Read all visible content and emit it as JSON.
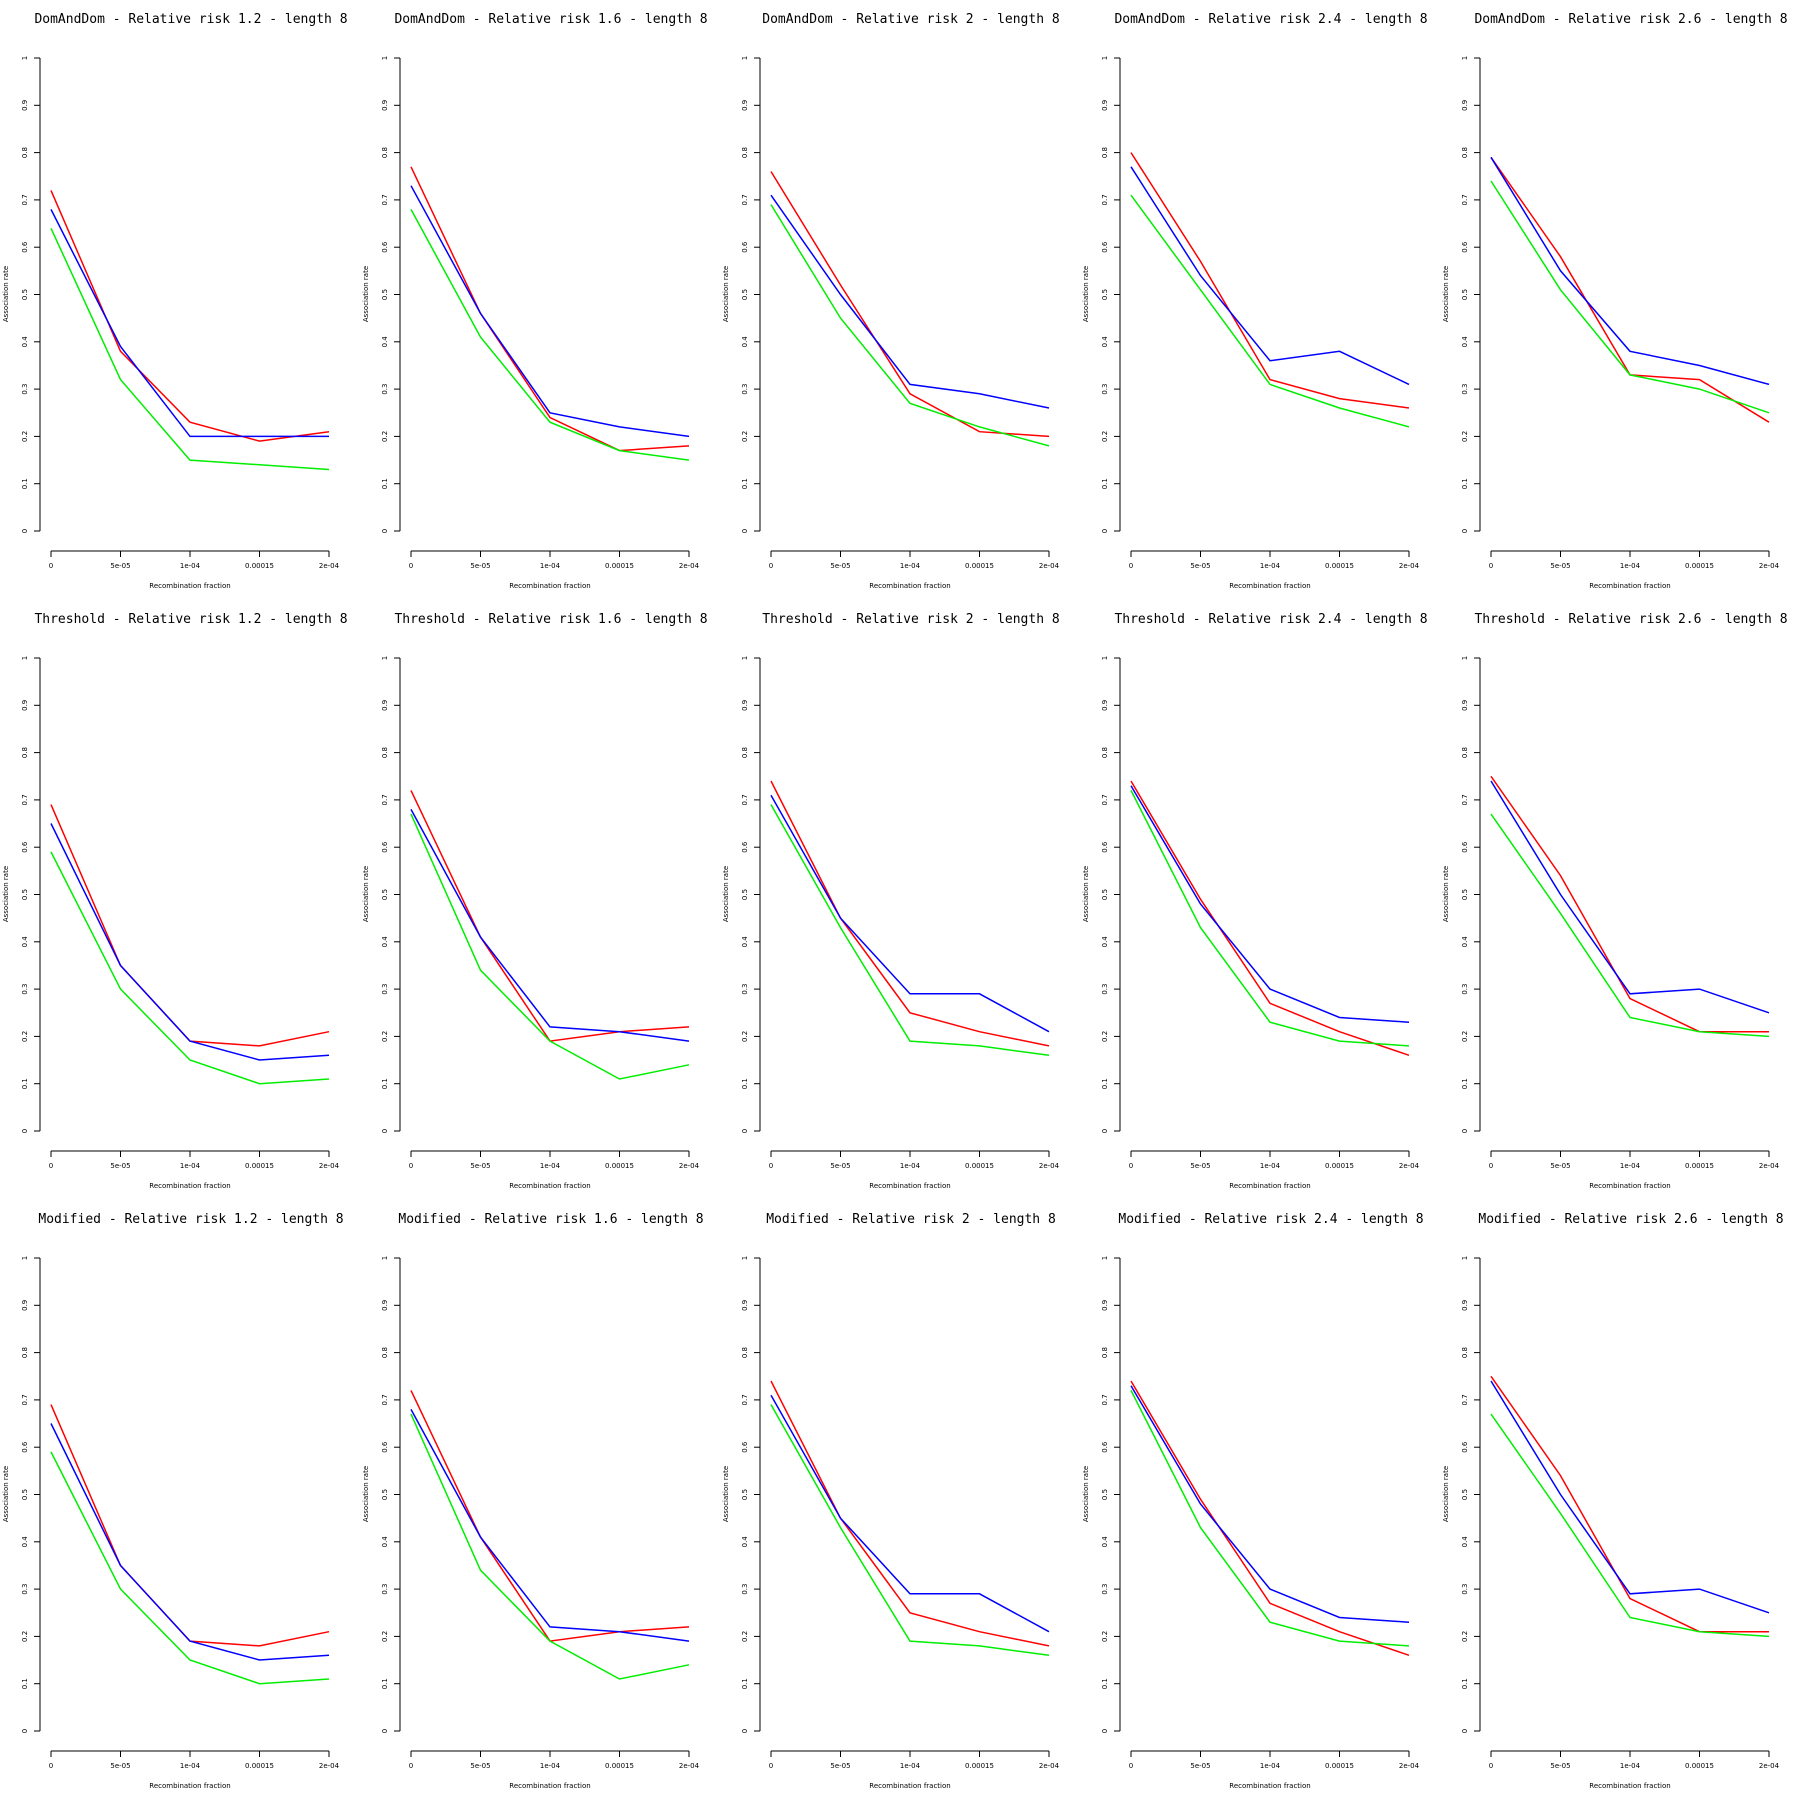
{
  "axes": {
    "xlabel": "Recombination fraction",
    "ylabel": "Association rate",
    "xtick_labels": [
      "0",
      "5e-05",
      "1e-04",
      "0.00015",
      "2e-04"
    ],
    "ytick_labels": [
      "0",
      "0.1",
      "0.2",
      "0.3",
      "0.4",
      "0.5",
      "0.6",
      "0.7",
      "0.8",
      "0.9",
      "1"
    ],
    "ylim": [
      0,
      1
    ]
  },
  "series_colors": [
    "#ff0000",
    "#0000ff",
    "#00ee00"
  ],
  "chart_data": [
    {
      "type": "line",
      "title": "DomAndDom  - Relative risk 1.2 - length 8",
      "x": [
        0,
        5e-05,
        0.0001,
        0.00015,
        0.0002
      ],
      "series": [
        {
          "color": "red",
          "values": [
            0.72,
            0.38,
            0.23,
            0.19,
            0.21
          ]
        },
        {
          "color": "blue",
          "values": [
            0.68,
            0.39,
            0.2,
            0.2,
            0.2
          ]
        },
        {
          "color": "green",
          "values": [
            0.64,
            0.32,
            0.15,
            0.14,
            0.13
          ]
        }
      ]
    },
    {
      "type": "line",
      "title": "DomAndDom  - Relative risk 1.6 - length 8",
      "x": [
        0,
        5e-05,
        0.0001,
        0.00015,
        0.0002
      ],
      "series": [
        {
          "color": "red",
          "values": [
            0.77,
            0.46,
            0.24,
            0.17,
            0.18
          ]
        },
        {
          "color": "blue",
          "values": [
            0.73,
            0.46,
            0.25,
            0.22,
            0.2
          ]
        },
        {
          "color": "green",
          "values": [
            0.68,
            0.41,
            0.23,
            0.17,
            0.15
          ]
        }
      ]
    },
    {
      "type": "line",
      "title": "DomAndDom  - Relative risk 2 - length 8",
      "x": [
        0,
        5e-05,
        0.0001,
        0.00015,
        0.0002
      ],
      "series": [
        {
          "color": "red",
          "values": [
            0.76,
            0.52,
            0.29,
            0.21,
            0.2
          ]
        },
        {
          "color": "blue",
          "values": [
            0.71,
            0.5,
            0.31,
            0.29,
            0.26
          ]
        },
        {
          "color": "green",
          "values": [
            0.69,
            0.45,
            0.27,
            0.22,
            0.18
          ]
        }
      ]
    },
    {
      "type": "line",
      "title": "DomAndDom  - Relative risk 2.4 - length 8",
      "x": [
        0,
        5e-05,
        0.0001,
        0.00015,
        0.0002
      ],
      "series": [
        {
          "color": "red",
          "values": [
            0.8,
            0.57,
            0.32,
            0.28,
            0.26
          ]
        },
        {
          "color": "blue",
          "values": [
            0.77,
            0.54,
            0.36,
            0.38,
            0.31
          ]
        },
        {
          "color": "green",
          "values": [
            0.71,
            0.51,
            0.31,
            0.26,
            0.22
          ]
        }
      ]
    },
    {
      "type": "line",
      "title": "DomAndDom  - Relative risk 2.6 - length 8",
      "x": [
        0,
        5e-05,
        0.0001,
        0.00015,
        0.0002
      ],
      "series": [
        {
          "color": "red",
          "values": [
            0.79,
            0.58,
            0.33,
            0.32,
            0.23
          ]
        },
        {
          "color": "blue",
          "values": [
            0.79,
            0.55,
            0.38,
            0.35,
            0.31
          ]
        },
        {
          "color": "green",
          "values": [
            0.74,
            0.51,
            0.33,
            0.3,
            0.25
          ]
        }
      ]
    },
    {
      "type": "line",
      "title": "Threshold  - Relative risk 1.2 - length 8",
      "x": [
        0,
        5e-05,
        0.0001,
        0.00015,
        0.0002
      ],
      "series": [
        {
          "color": "red",
          "values": [
            0.69,
            0.35,
            0.19,
            0.18,
            0.21
          ]
        },
        {
          "color": "blue",
          "values": [
            0.65,
            0.35,
            0.19,
            0.15,
            0.16
          ]
        },
        {
          "color": "green",
          "values": [
            0.59,
            0.3,
            0.15,
            0.1,
            0.11
          ]
        }
      ]
    },
    {
      "type": "line",
      "title": "Threshold  - Relative risk 1.6 - length 8",
      "x": [
        0,
        5e-05,
        0.0001,
        0.00015,
        0.0002
      ],
      "series": [
        {
          "color": "red",
          "values": [
            0.72,
            0.41,
            0.19,
            0.21,
            0.22
          ]
        },
        {
          "color": "blue",
          "values": [
            0.68,
            0.41,
            0.22,
            0.21,
            0.19
          ]
        },
        {
          "color": "green",
          "values": [
            0.67,
            0.34,
            0.19,
            0.11,
            0.14
          ]
        }
      ]
    },
    {
      "type": "line",
      "title": "Threshold  - Relative risk 2 - length 8",
      "x": [
        0,
        5e-05,
        0.0001,
        0.00015,
        0.0002
      ],
      "series": [
        {
          "color": "red",
          "values": [
            0.74,
            0.45,
            0.25,
            0.21,
            0.18
          ]
        },
        {
          "color": "blue",
          "values": [
            0.71,
            0.45,
            0.29,
            0.29,
            0.21
          ]
        },
        {
          "color": "green",
          "values": [
            0.69,
            0.43,
            0.19,
            0.18,
            0.16
          ]
        }
      ]
    },
    {
      "type": "line",
      "title": "Threshold  - Relative risk 2.4 - length 8",
      "x": [
        0,
        5e-05,
        0.0001,
        0.00015,
        0.0002
      ],
      "series": [
        {
          "color": "red",
          "values": [
            0.74,
            0.49,
            0.27,
            0.21,
            0.16
          ]
        },
        {
          "color": "blue",
          "values": [
            0.73,
            0.48,
            0.3,
            0.24,
            0.23
          ]
        },
        {
          "color": "green",
          "values": [
            0.72,
            0.43,
            0.23,
            0.19,
            0.18
          ]
        }
      ]
    },
    {
      "type": "line",
      "title": "Threshold  - Relative risk 2.6 - length 8",
      "x": [
        0,
        5e-05,
        0.0001,
        0.00015,
        0.0002
      ],
      "series": [
        {
          "color": "red",
          "values": [
            0.75,
            0.54,
            0.28,
            0.21,
            0.21
          ]
        },
        {
          "color": "blue",
          "values": [
            0.74,
            0.5,
            0.29,
            0.3,
            0.25
          ]
        },
        {
          "color": "green",
          "values": [
            0.67,
            0.46,
            0.24,
            0.21,
            0.2
          ]
        }
      ]
    },
    {
      "type": "line",
      "title": "Modified  - Relative risk 1.2 - length 8",
      "x": [
        0,
        5e-05,
        0.0001,
        0.00015,
        0.0002
      ],
      "series": [
        {
          "color": "red",
          "values": [
            0.69,
            0.35,
            0.19,
            0.18,
            0.21
          ]
        },
        {
          "color": "blue",
          "values": [
            0.65,
            0.35,
            0.19,
            0.15,
            0.16
          ]
        },
        {
          "color": "green",
          "values": [
            0.59,
            0.3,
            0.15,
            0.1,
            0.11
          ]
        }
      ]
    },
    {
      "type": "line",
      "title": "Modified  - Relative risk 1.6 - length 8",
      "x": [
        0,
        5e-05,
        0.0001,
        0.00015,
        0.0002
      ],
      "series": [
        {
          "color": "red",
          "values": [
            0.72,
            0.41,
            0.19,
            0.21,
            0.22
          ]
        },
        {
          "color": "blue",
          "values": [
            0.68,
            0.41,
            0.22,
            0.21,
            0.19
          ]
        },
        {
          "color": "green",
          "values": [
            0.67,
            0.34,
            0.19,
            0.11,
            0.14
          ]
        }
      ]
    },
    {
      "type": "line",
      "title": "Modified  - Relative risk 2 - length 8",
      "x": [
        0,
        5e-05,
        0.0001,
        0.00015,
        0.0002
      ],
      "series": [
        {
          "color": "red",
          "values": [
            0.74,
            0.45,
            0.25,
            0.21,
            0.18
          ]
        },
        {
          "color": "blue",
          "values": [
            0.71,
            0.45,
            0.29,
            0.29,
            0.21
          ]
        },
        {
          "color": "green",
          "values": [
            0.69,
            0.43,
            0.19,
            0.18,
            0.16
          ]
        }
      ]
    },
    {
      "type": "line",
      "title": "Modified  - Relative risk 2.4 - length 8",
      "x": [
        0,
        5e-05,
        0.0001,
        0.00015,
        0.0002
      ],
      "series": [
        {
          "color": "red",
          "values": [
            0.74,
            0.49,
            0.27,
            0.21,
            0.16
          ]
        },
        {
          "color": "blue",
          "values": [
            0.73,
            0.48,
            0.3,
            0.24,
            0.23
          ]
        },
        {
          "color": "green",
          "values": [
            0.72,
            0.43,
            0.23,
            0.19,
            0.18
          ]
        }
      ]
    },
    {
      "type": "line",
      "title": "Modified  - Relative risk 2.6 - length 8",
      "x": [
        0,
        5e-05,
        0.0001,
        0.00015,
        0.0002
      ],
      "series": [
        {
          "color": "red",
          "values": [
            0.75,
            0.54,
            0.28,
            0.21,
            0.21
          ]
        },
        {
          "color": "blue",
          "values": [
            0.74,
            0.5,
            0.29,
            0.3,
            0.25
          ]
        },
        {
          "color": "green",
          "values": [
            0.67,
            0.46,
            0.24,
            0.21,
            0.2
          ]
        }
      ]
    }
  ]
}
